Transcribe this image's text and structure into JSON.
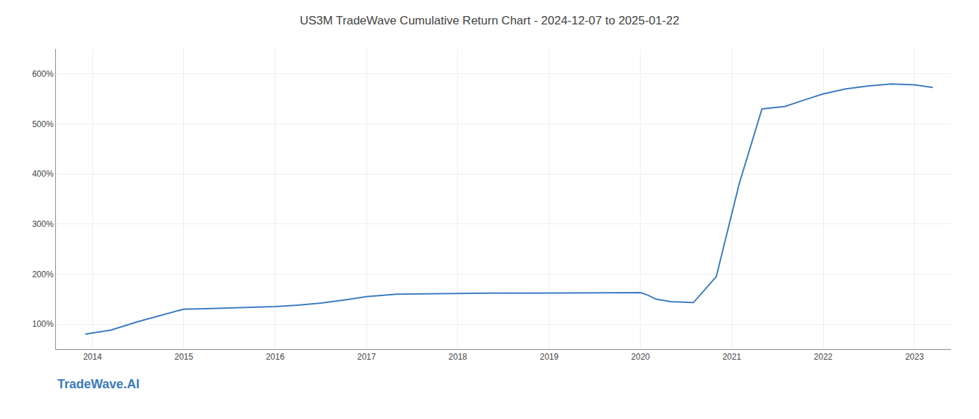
{
  "chart_data": {
    "type": "line",
    "title": "US3M TradeWave Cumulative Return Chart - 2024-12-07 to 2025-01-22",
    "x": [
      2013.92,
      2014.2,
      2014.5,
      2014.75,
      2015.0,
      2015.25,
      2015.5,
      2015.75,
      2016.0,
      2016.25,
      2016.5,
      2016.75,
      2017.0,
      2017.33,
      2017.66,
      2018.0,
      2018.33,
      2018.66,
      2019.0,
      2019.33,
      2019.66,
      2020.0,
      2020.08,
      2020.17,
      2020.33,
      2020.58,
      2020.83,
      2021.08,
      2021.33,
      2021.58,
      2021.83,
      2022.0,
      2022.25,
      2022.5,
      2022.75,
      2023.0,
      2023.2
    ],
    "values": [
      80,
      88,
      105,
      118,
      130,
      131,
      132,
      133,
      135,
      138,
      142,
      148,
      155,
      160,
      161,
      161,
      162,
      162,
      162,
      163,
      163,
      163,
      158,
      150,
      145,
      143,
      195,
      380,
      530,
      535,
      550,
      560,
      570,
      576,
      580,
      578,
      573
    ],
    "color": "#3a7abf",
    "xlim": [
      2013.6,
      2023.4
    ],
    "xticks": [
      2014,
      2015,
      2016,
      2017,
      2018,
      2019,
      2020,
      2021,
      2022,
      2023
    ],
    "ylim": [
      50,
      650
    ],
    "yticks": [
      {
        "value": 100,
        "label": "100%"
      },
      {
        "value": 200,
        "label": "200%"
      },
      {
        "value": 300,
        "label": "300%"
      },
      {
        "value": 400,
        "label": "400%"
      },
      {
        "value": 500,
        "label": "500%"
      },
      {
        "value": 600,
        "label": "600%"
      }
    ],
    "grid": true,
    "annotations": [
      {
        "text": "TradeWave.AI",
        "color": "#3a7abf"
      }
    ]
  }
}
